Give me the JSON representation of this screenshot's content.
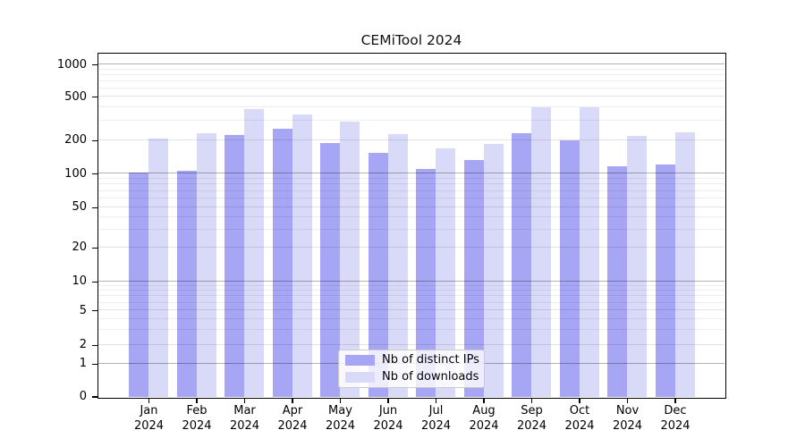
{
  "chart_data": {
    "type": "bar",
    "title": "CEMiTool 2024",
    "categories": [
      {
        "month": "Jan",
        "year": "2024"
      },
      {
        "month": "Feb",
        "year": "2024"
      },
      {
        "month": "Mar",
        "year": "2024"
      },
      {
        "month": "Apr",
        "year": "2024"
      },
      {
        "month": "May",
        "year": "2024"
      },
      {
        "month": "Jun",
        "year": "2024"
      },
      {
        "month": "Jul",
        "year": "2024"
      },
      {
        "month": "Aug",
        "year": "2024"
      },
      {
        "month": "Sep",
        "year": "2024"
      },
      {
        "month": "Oct",
        "year": "2024"
      },
      {
        "month": "Nov",
        "year": "2024"
      },
      {
        "month": "Dec",
        "year": "2024"
      }
    ],
    "series": [
      {
        "key": "distinct-ips",
        "name": "Nb of distinct IPs",
        "color": "#a6a6f4",
        "values": [
          102,
          106,
          223,
          255,
          188,
          153,
          110,
          132,
          230,
          200,
          117,
          120
        ]
      },
      {
        "key": "downloads",
        "name": "Nb of downloads",
        "color": "#d9d9f8",
        "values": [
          205,
          230,
          383,
          343,
          297,
          229,
          168,
          186,
          399,
          397,
          217,
          236
        ]
      }
    ],
    "xlabel": "",
    "ylabel": "",
    "yscale": "log-like",
    "yticks": [
      {
        "value": 0,
        "label": "0"
      },
      {
        "value": 1,
        "label": "1"
      },
      {
        "value": 2,
        "label": "2"
      },
      {
        "value": 5,
        "label": "5"
      },
      {
        "value": 10,
        "label": "10"
      },
      {
        "value": 20,
        "label": "20"
      },
      {
        "value": 50,
        "label": "50"
      },
      {
        "value": 100,
        "label": "100"
      },
      {
        "value": 200,
        "label": "200"
      },
      {
        "value": 500,
        "label": "500"
      },
      {
        "value": 1000,
        "label": "1000"
      }
    ],
    "ylim": [
      0,
      1250
    ],
    "grid": true,
    "legend_position": "lower-center"
  }
}
